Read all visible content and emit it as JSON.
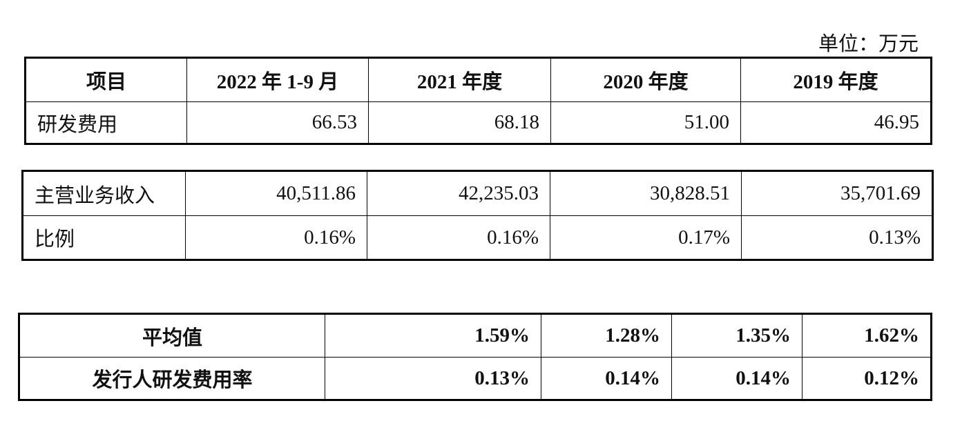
{
  "unit": "单位：万元",
  "table1": {
    "header": [
      "项目",
      "2022 年 1-9 月",
      "2021 年度",
      "2020 年度",
      "2019 年度"
    ],
    "rows": [
      [
        "研发费用",
        "66.53",
        "68.18",
        "51.00",
        "46.95"
      ]
    ]
  },
  "table2": {
    "rows": [
      [
        "主营业务收入",
        "40,511.86",
        "42,235.03",
        "30,828.51",
        "35,701.69"
      ],
      [
        "比例",
        "0.16%",
        "0.16%",
        "0.17%",
        "0.13%"
      ]
    ]
  },
  "table3": {
    "rows": [
      [
        "平均值",
        "1.59%",
        "1.28%",
        "1.35%",
        "1.62%"
      ],
      [
        "发行人研发费用率",
        "0.13%",
        "0.14%",
        "0.14%",
        "0.12%"
      ]
    ]
  }
}
